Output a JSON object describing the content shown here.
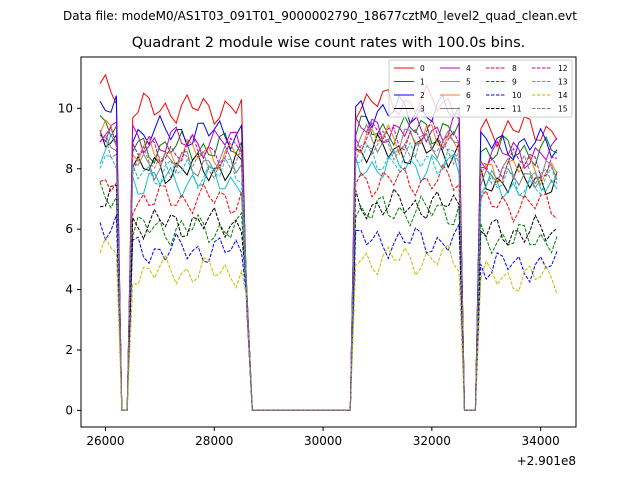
{
  "header": {
    "suptitle": "Data file: modeM0/AS1T03_091T01_9000002790_18677cztM0_level2_quad_clean.evt"
  },
  "chart_data": {
    "type": "line",
    "title": "Quadrant 2 module wise count rates with 100.0s bins.",
    "xlabel": "",
    "ylabel": "",
    "x_offset_label": "+2.901e8",
    "xlim": [
      25550,
      34650
    ],
    "ylim": [
      -0.55,
      11.7
    ],
    "xticks": [
      26000,
      28000,
      30000,
      32000,
      34000
    ],
    "xtick_labels": [
      "26000",
      "28000",
      "30000",
      "32000",
      "34000"
    ],
    "yticks": [
      0,
      2,
      4,
      6,
      8,
      10
    ],
    "ytick_labels": [
      "0",
      "2",
      "4",
      "6",
      "8",
      "10"
    ],
    "grid": false,
    "legend_location": "top-right",
    "legend_columns": 4,
    "segments": [
      {
        "x0": 25900,
        "x1": 26200
      },
      {
        "x0": 26500,
        "x1": 28500
      },
      {
        "x0": 30600,
        "x1": 32500
      },
      {
        "x0": 32900,
        "x1": 34300
      }
    ],
    "dip_times": [
      26250,
      26350,
      26450,
      28600,
      28700,
      30550,
      32550,
      32650,
      32750,
      32850
    ],
    "dip_values": [
      [
        1.6,
        0.1,
        0.5,
        3.5,
        0.0,
        3.5,
        3.5,
        0.1,
        0.6,
        3.5
      ]
    ],
    "series": [
      {
        "name": "0",
        "color": "#ff0000",
        "dash": "solid",
        "levels": [
          10.6,
          10.0,
          10.2,
          9.3
        ]
      },
      {
        "name": "1",
        "color": "#008000",
        "dash": "solid",
        "levels": [
          9.6,
          8.7,
          9.3,
          8.6
        ]
      },
      {
        "name": "2",
        "color": "#0000ff",
        "dash": "solid",
        "levels": [
          10.0,
          9.2,
          9.9,
          8.8
        ]
      },
      {
        "name": "3",
        "color": "#000000",
        "dash": "solid",
        "levels": [
          8.9,
          8.0,
          8.6,
          7.6
        ]
      },
      {
        "name": "4",
        "color": "#bf00bf",
        "dash": "solid",
        "levels": [
          9.4,
          8.9,
          9.3,
          8.5
        ]
      },
      {
        "name": "5",
        "color": "#17becf",
        "dash": "solid",
        "levels": [
          8.6,
          7.6,
          8.1,
          7.4
        ]
      },
      {
        "name": "6",
        "color": "#ff7f0e",
        "dash": "solid",
        "levels": [
          9.2,
          8.5,
          9.0,
          8.0
        ]
      },
      {
        "name": "7",
        "color": "#7f7f7f",
        "dash": "solid",
        "levels": [
          9.0,
          8.2,
          8.9,
          7.8
        ]
      },
      {
        "name": "8",
        "color": "#ff0000",
        "dash": "dashed",
        "levels": [
          7.4,
          7.0,
          7.6,
          6.8
        ]
      },
      {
        "name": "9",
        "color": "#008000",
        "dash": "dashed",
        "levels": [
          7.0,
          6.0,
          6.6,
          5.7
        ]
      },
      {
        "name": "10",
        "color": "#0000ff",
        "dash": "dashed",
        "levels": [
          6.2,
          5.3,
          5.6,
          4.8
        ]
      },
      {
        "name": "11",
        "color": "#000000",
        "dash": "dashed",
        "levels": [
          7.0,
          6.2,
          6.8,
          5.9
        ]
      },
      {
        "name": "12",
        "color": "#bf00bf",
        "dash": "dashed",
        "levels": [
          9.0,
          8.6,
          9.1,
          8.2
        ]
      },
      {
        "name": "13",
        "color": "#17becf",
        "dash": "dashed",
        "levels": [
          8.4,
          7.9,
          8.3,
          7.5
        ]
      },
      {
        "name": "14",
        "color": "#bfbf00",
        "dash": "dashed",
        "levels": [
          5.3,
          4.6,
          5.0,
          4.4
        ]
      },
      {
        "name": "15",
        "color": "#7f7f7f",
        "dash": "dashed",
        "levels": [
          8.7,
          8.2,
          8.7,
          7.9
        ]
      }
    ]
  }
}
